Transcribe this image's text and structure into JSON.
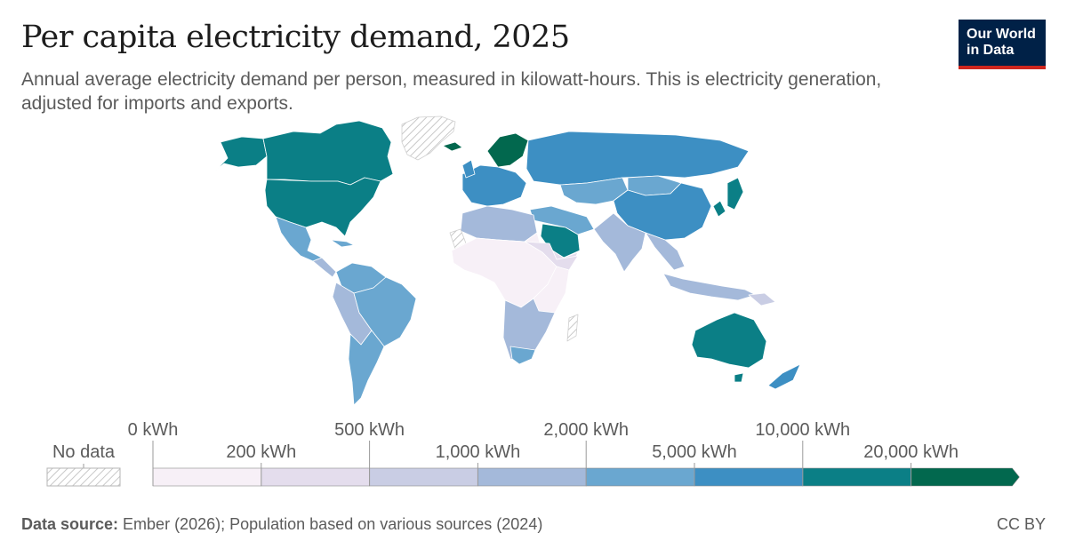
{
  "header": {
    "title": "Per capita electricity demand, 2025",
    "subtitle": "Annual average electricity demand per person, measured in kilowatt-hours. This is electricity generation, adjusted for imports and exports."
  },
  "logo": {
    "line1": "Our World",
    "line2": "in Data"
  },
  "legend": {
    "no_data_label": "No data",
    "upper_ticks": [
      "0 kWh",
      "500 kWh",
      "2,000 kWh",
      "10,000 kWh"
    ],
    "lower_ticks": [
      "200 kWh",
      "1,000 kWh",
      "5,000 kWh",
      "20,000 kWh"
    ],
    "bins": [
      {
        "from": 0,
        "to": 200,
        "color": "#f7f0f7"
      },
      {
        "from": 200,
        "to": 500,
        "color": "#e4dded"
      },
      {
        "from": 500,
        "to": 1000,
        "color": "#c9cde4"
      },
      {
        "from": 1000,
        "to": 2000,
        "color": "#a4b9da"
      },
      {
        "from": 2000,
        "to": 5000,
        "color": "#6aa7d0"
      },
      {
        "from": 5000,
        "to": 10000,
        "color": "#3d8fc3"
      },
      {
        "from": 10000,
        "to": 20000,
        "color": "#0b7f86"
      },
      {
        "from": 20000,
        "to": null,
        "color": "#02684e"
      }
    ]
  },
  "colors": {
    "no_data": "#e6e6e6",
    "hatch": "#c8c8c8"
  },
  "footer": {
    "source_label": "Data source:",
    "source_text": " Ember (2026); Population based on various sources (2024)",
    "license": "CC BY"
  }
}
